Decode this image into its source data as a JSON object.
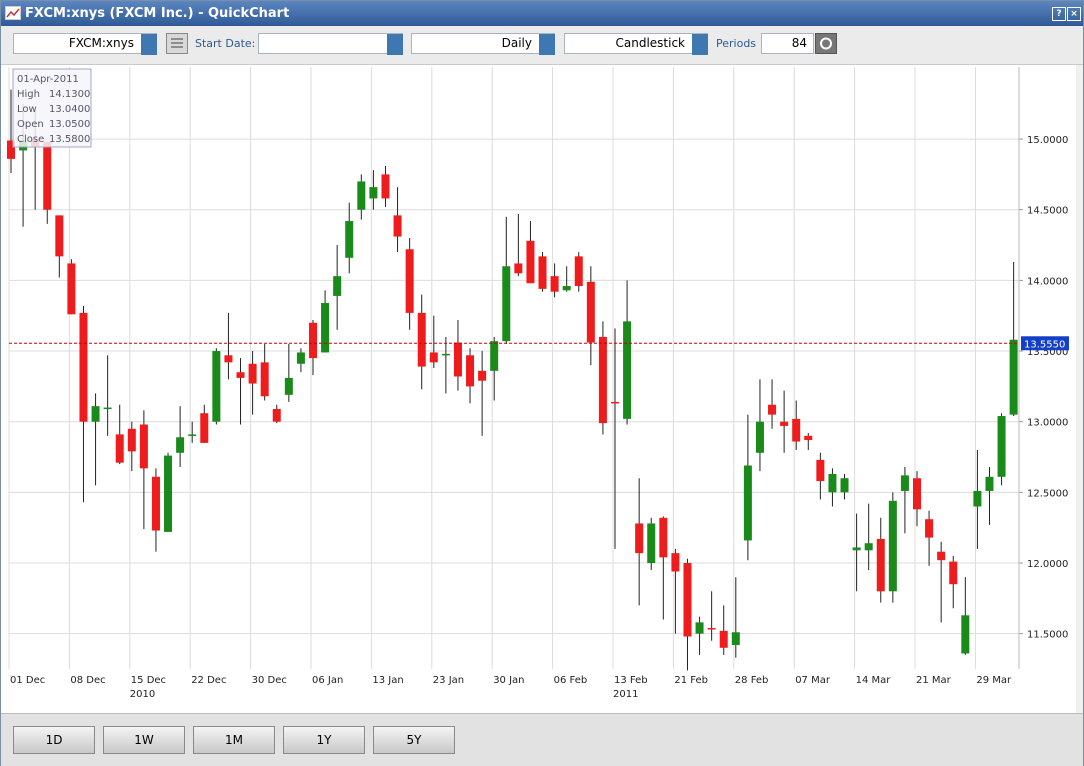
{
  "window": {
    "title": "FXCM:xnys (FXCM Inc.) - QuickChart"
  },
  "toolbar": {
    "symbol": "FXCM:xnys",
    "start_date_label": "Start Date:",
    "interval": "Daily",
    "chart_style": "Candlestick",
    "periods_label": "Periods",
    "periods": "84"
  },
  "range_buttons": [
    "1D",
    "1W",
    "1M",
    "1Y",
    "5Y"
  ],
  "tooltip": {
    "date": "01-Apr-2011",
    "rows": [
      [
        "High",
        "14.1300"
      ],
      [
        "Low",
        "13.0400"
      ],
      [
        "Open",
        "13.0500"
      ],
      [
        "Close",
        "13.5800"
      ]
    ]
  },
  "chart_data": {
    "type": "candlestick",
    "categories": [
      "01 Dec",
      null,
      null,
      null,
      null,
      "08 Dec",
      null,
      null,
      null,
      null,
      "15 Dec",
      null,
      null,
      null,
      null,
      "22 Dec",
      null,
      null,
      null,
      null,
      "30 Dec",
      null,
      null,
      null,
      null,
      "06 Jan",
      null,
      null,
      null,
      null,
      "13 Jan",
      null,
      null,
      null,
      null,
      "23 Jan",
      null,
      null,
      null,
      null,
      "30 Jan",
      null,
      null,
      null,
      null,
      "06 Feb",
      null,
      null,
      null,
      null,
      "13 Feb",
      null,
      null,
      null,
      null,
      "21 Feb",
      null,
      null,
      null,
      null,
      "28 Feb",
      null,
      null,
      null,
      null,
      "07 Mar",
      null,
      null,
      null,
      null,
      "14 Mar",
      null,
      null,
      null,
      null,
      "21 Mar",
      null,
      null,
      null,
      null,
      "29 Mar",
      null,
      null,
      null
    ],
    "x_group_labels": [
      "2010",
      "2011"
    ],
    "open": [
      14.99,
      14.92,
      15.0,
      14.98,
      14.46,
      14.12,
      13.77,
      13.0,
      13.1,
      12.91,
      12.95,
      12.98,
      12.61,
      12.22,
      12.78,
      12.91,
      13.06,
      13.0,
      13.47,
      13.35,
      13.41,
      13.42,
      13.09,
      13.19,
      13.41,
      13.7,
      13.49,
      13.89,
      14.16,
      14.5,
      14.58,
      14.75,
      14.46,
      14.22,
      13.77,
      13.49,
      13.48,
      13.56,
      13.47,
      13.36,
      13.36,
      13.57,
      14.12,
      14.28,
      14.17,
      14.03,
      13.93,
      14.17,
      13.99,
      13.6,
      13.14,
      13.02,
      12.28,
      12.0,
      12.32,
      12.07,
      12.0,
      11.5,
      11.54,
      11.52,
      11.42,
      12.16,
      12.78,
      13.12,
      13.0,
      13.02,
      12.9,
      12.73,
      12.5,
      12.5,
      12.09,
      12.09,
      12.17,
      11.8,
      12.51,
      12.6,
      12.31,
      12.08,
      12.01,
      11.36,
      12.4,
      12.51,
      12.61,
      13.05
    ],
    "high": [
      15.35,
      15.25,
      15.2,
      14.98,
      14.46,
      14.15,
      13.82,
      13.2,
      13.47,
      13.12,
      13.0,
      13.08,
      12.67,
      12.78,
      13.11,
      13.0,
      13.12,
      13.52,
      13.77,
      13.45,
      13.5,
      13.55,
      13.12,
      13.55,
      13.52,
      13.72,
      13.93,
      14.25,
      14.55,
      14.75,
      14.78,
      14.81,
      14.66,
      14.3,
      13.9,
      13.75,
      13.6,
      13.72,
      13.52,
      13.5,
      13.6,
      14.45,
      14.47,
      14.42,
      14.2,
      14.12,
      14.1,
      14.2,
      14.1,
      13.71,
      13.66,
      14.0,
      12.6,
      12.32,
      12.33,
      12.1,
      12.03,
      11.62,
      11.8,
      11.7,
      11.9,
      13.05,
      13.3,
      13.3,
      13.22,
      13.15,
      12.92,
      12.78,
      12.67,
      12.63,
      12.35,
      12.42,
      12.32,
      12.5,
      12.68,
      12.65,
      12.37,
      12.15,
      12.05,
      11.9,
      12.8,
      12.68,
      13.06,
      14.13
    ],
    "low": [
      14.76,
      14.38,
      14.5,
      14.4,
      14.02,
      13.76,
      12.43,
      12.55,
      12.9,
      12.7,
      12.65,
      12.24,
      12.08,
      12.22,
      12.68,
      12.85,
      12.85,
      12.98,
      13.3,
      12.98,
      13.05,
      13.15,
      12.99,
      13.14,
      13.35,
      13.33,
      13.49,
      13.65,
      14.05,
      14.43,
      14.5,
      14.52,
      14.2,
      13.65,
      13.23,
      13.38,
      13.2,
      13.22,
      13.13,
      12.9,
      13.15,
      13.55,
      14.03,
      13.98,
      13.92,
      13.88,
      13.92,
      13.92,
      13.4,
      12.91,
      12.1,
      12.98,
      11.7,
      11.95,
      11.6,
      11.5,
      11.24,
      11.35,
      11.45,
      11.35,
      11.33,
      12.02,
      12.65,
      12.95,
      12.78,
      12.8,
      12.8,
      12.45,
      12.4,
      12.45,
      11.8,
      11.95,
      11.72,
      11.72,
      12.21,
      12.26,
      11.98,
      11.58,
      11.68,
      11.35,
      12.1,
      12.27,
      12.55,
      13.04
    ],
    "close": [
      14.86,
      14.99,
      14.95,
      14.5,
      14.17,
      13.76,
      13.0,
      13.11,
      13.1,
      12.71,
      12.79,
      12.67,
      12.23,
      12.76,
      12.89,
      12.91,
      12.85,
      13.5,
      13.42,
      13.31,
      13.27,
      13.18,
      13.0,
      13.31,
      13.49,
      13.45,
      13.84,
      14.03,
      14.42,
      14.7,
      14.66,
      14.58,
      14.31,
      13.77,
      13.39,
      13.42,
      13.48,
      13.32,
      13.25,
      13.29,
      13.57,
      14.1,
      14.05,
      13.98,
      13.94,
      13.92,
      13.96,
      13.96,
      13.56,
      12.99,
      13.13,
      13.71,
      12.07,
      12.28,
      12.04,
      11.94,
      11.48,
      11.58,
      11.53,
      11.4,
      11.51,
      12.69,
      13.0,
      13.05,
      12.97,
      12.86,
      12.87,
      12.58,
      12.63,
      12.6,
      12.11,
      12.14,
      11.8,
      12.44,
      12.62,
      12.38,
      12.18,
      12.02,
      11.85,
      11.63,
      12.51,
      12.61,
      13.04,
      13.58
    ],
    "up_color": "#1a8a1a",
    "down_color": "#ee1c1c",
    "ylim": [
      11.25,
      15.51
    ],
    "yticks": [
      {
        "value": 11.5,
        "label": "11.5000"
      },
      {
        "value": 12.0,
        "label": "12.0000"
      },
      {
        "value": 12.5,
        "label": "12.5000"
      },
      {
        "value": 13.0,
        "label": "13.0000"
      },
      {
        "value": 13.5,
        "label": "13.5000"
      },
      {
        "value": 14.0,
        "label": "14.0000"
      },
      {
        "value": 14.5,
        "label": "14.5000"
      },
      {
        "value": 15.0,
        "label": "15.0000"
      }
    ],
    "current_price": {
      "value": 13.555,
      "label": "13.5550"
    },
    "grid": true
  }
}
